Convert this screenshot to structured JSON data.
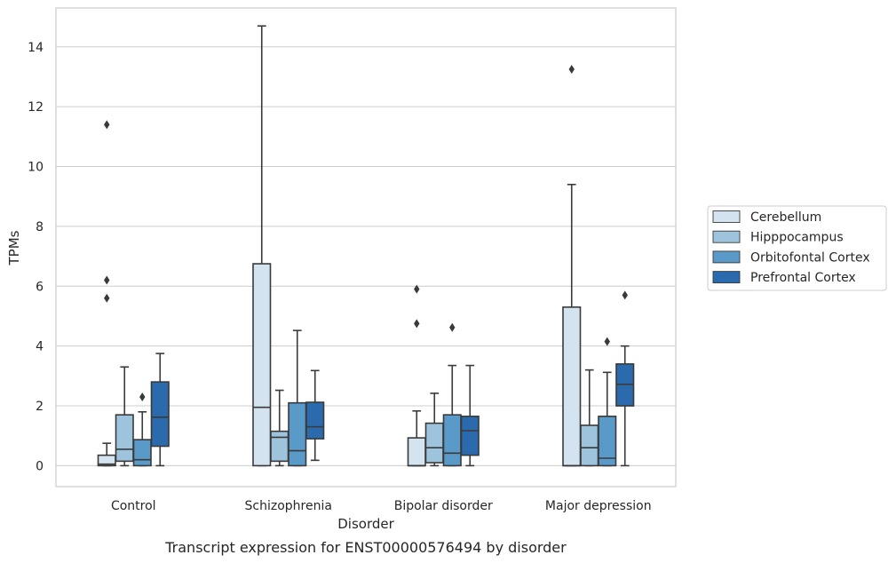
{
  "chart_data": {
    "type": "box",
    "title": "",
    "caption": "Transcript expression for ENST00000576494 by disorder",
    "xlabel": "Disorder",
    "ylabel": "TPMs",
    "ylim": [
      -0.7,
      15.3
    ],
    "yticks": [
      0,
      2,
      4,
      6,
      8,
      10,
      12,
      14
    ],
    "grid": "horizontal",
    "legend_position": "right",
    "categories": [
      "Control",
      "Schizophrenia",
      "Bipolar disorder",
      "Major depression"
    ],
    "series": [
      {
        "name": "Cerebellum",
        "color": "#d4e3f0",
        "boxes": [
          {
            "whislo": 0,
            "q1": 0,
            "med": 0.05,
            "q3": 0.35,
            "whishi": 0.75,
            "fliers": [
              5.6,
              6.2,
              11.4
            ]
          },
          {
            "whislo": 0,
            "q1": 0,
            "med": 1.95,
            "q3": 6.75,
            "whishi": 14.7,
            "fliers": []
          },
          {
            "whislo": 0,
            "q1": 0,
            "med": 0,
            "q3": 0.93,
            "whishi": 1.83,
            "fliers": [
              4.75,
              5.9
            ]
          },
          {
            "whislo": 0,
            "q1": 0,
            "med": 0,
            "q3": 5.3,
            "whishi": 9.4,
            "fliers": [
              13.25
            ]
          }
        ]
      },
      {
        "name": "Hipppocampus",
        "color": "#9ec3dd",
        "boxes": [
          {
            "whislo": 0,
            "q1": 0.15,
            "med": 0.55,
            "q3": 1.7,
            "whishi": 3.3,
            "fliers": []
          },
          {
            "whislo": 0,
            "q1": 0.15,
            "med": 0.95,
            "q3": 1.15,
            "whishi": 2.52,
            "fliers": []
          },
          {
            "whislo": 0,
            "q1": 0.1,
            "med": 0.6,
            "q3": 1.42,
            "whishi": 2.42,
            "fliers": []
          },
          {
            "whislo": 0,
            "q1": 0,
            "med": 0.6,
            "q3": 1.35,
            "whishi": 3.2,
            "fliers": []
          }
        ]
      },
      {
        "name": "Orbitofontal Cortex",
        "color": "#5a9ac9",
        "boxes": [
          {
            "whislo": 0,
            "q1": 0,
            "med": 0.2,
            "q3": 0.87,
            "whishi": 1.8,
            "fliers": [
              2.3
            ]
          },
          {
            "whislo": 0,
            "q1": 0,
            "med": 0.5,
            "q3": 2.1,
            "whishi": 4.52,
            "fliers": []
          },
          {
            "whislo": 0,
            "q1": 0,
            "med": 0.42,
            "q3": 1.7,
            "whishi": 3.35,
            "fliers": [
              4.62
            ]
          },
          {
            "whislo": 0,
            "q1": 0,
            "med": 0.25,
            "q3": 1.65,
            "whishi": 3.12,
            "fliers": [
              4.15
            ]
          }
        ]
      },
      {
        "name": "Prefrontal Cortex",
        "color": "#2a6aad",
        "boxes": [
          {
            "whislo": 0,
            "q1": 0.65,
            "med": 1.62,
            "q3": 2.8,
            "whishi": 3.75,
            "fliers": []
          },
          {
            "whislo": 0.18,
            "q1": 0.9,
            "med": 1.3,
            "q3": 2.12,
            "whishi": 3.18,
            "fliers": []
          },
          {
            "whislo": 0,
            "q1": 0.35,
            "med": 1.17,
            "q3": 1.65,
            "whishi": 3.35,
            "fliers": []
          },
          {
            "whislo": 0,
            "q1": 2.0,
            "med": 2.72,
            "q3": 3.4,
            "whishi": 4.0,
            "fliers": [
              5.7
            ]
          }
        ]
      }
    ]
  }
}
